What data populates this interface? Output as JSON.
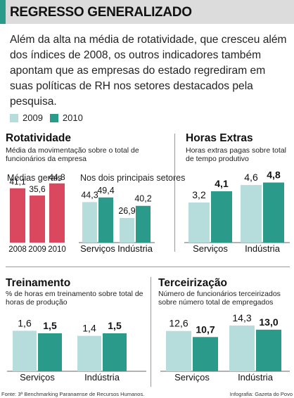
{
  "header": {
    "title": "REGRESSO GENERALIZADO"
  },
  "intro": "Além da alta na média de rotatividade, que cresceu além dos índices de 2008, os outros indicadores também apontam que as empresas do estado regrediram em suas políticas de RH nos setores destacados pela pesquisa.",
  "legend": [
    {
      "label": "2009",
      "color": "#b6dcdc"
    },
    {
      "label": "2010",
      "color": "#2a9a8a"
    }
  ],
  "colors": {
    "red": "#d9485f",
    "light": "#b6dcdc",
    "dark": "#2a9a8a"
  },
  "footer": {
    "source": "Fonte: 3ª Benchmarking Paranaense de Recursos Humanos.",
    "credit": "Infografia: Gazeta do Povo"
  },
  "chart_data": [
    {
      "type": "bar",
      "title": "Rotatividade",
      "subtitle": "Média da movimentação sobre o total de funcionários da empresa",
      "group_label": "Médias gerais",
      "categories": [
        "2008",
        "2009",
        "2010"
      ],
      "values": [
        41.1,
        35.6,
        44.8
      ],
      "labels": [
        "41,1",
        "35,6",
        "44,8"
      ]
    },
    {
      "type": "bar",
      "group_label": "Nos dois principais setores",
      "categories": [
        "Serviços",
        "Indústria"
      ],
      "series": [
        {
          "name": "2009",
          "values": [
            44.3,
            26.9
          ],
          "labels": [
            "44,3",
            "26,9"
          ]
        },
        {
          "name": "2010",
          "values": [
            49.4,
            40.2
          ],
          "labels": [
            "49,4",
            "40,2"
          ]
        }
      ]
    },
    {
      "type": "bar",
      "title": "Horas Extras",
      "subtitle": "Horas extras pagas sobre total de tempo produtivo",
      "categories": [
        "Serviços",
        "Indústria"
      ],
      "series": [
        {
          "name": "2009",
          "values": [
            3.2,
            4.6
          ],
          "labels": [
            "3,2",
            "4,6"
          ]
        },
        {
          "name": "2010",
          "values": [
            4.1,
            4.8
          ],
          "labels": [
            "4,1",
            "4,8"
          ]
        }
      ]
    },
    {
      "type": "bar",
      "title": "Treinamento",
      "subtitle": "% de horas em treinamento sobre total de horas de produção",
      "categories": [
        "Serviços",
        "Indústria"
      ],
      "series": [
        {
          "name": "2009",
          "values": [
            1.6,
            1.4
          ],
          "labels": [
            "1,6",
            "1,4"
          ]
        },
        {
          "name": "2010",
          "values": [
            1.5,
            1.5
          ],
          "labels": [
            "1,5",
            "1,5"
          ]
        }
      ]
    },
    {
      "type": "bar",
      "title": "Terceirização",
      "subtitle": "Número de funcionários terceirizados sobre número total de empregados",
      "categories": [
        "Serviços",
        "Indústria"
      ],
      "series": [
        {
          "name": "2009",
          "values": [
            12.6,
            14.3
          ],
          "labels": [
            "12,6",
            "14,3"
          ]
        },
        {
          "name": "2010",
          "values": [
            10.7,
            13.0
          ],
          "labels": [
            "10,7",
            "13,0"
          ]
        }
      ]
    }
  ]
}
